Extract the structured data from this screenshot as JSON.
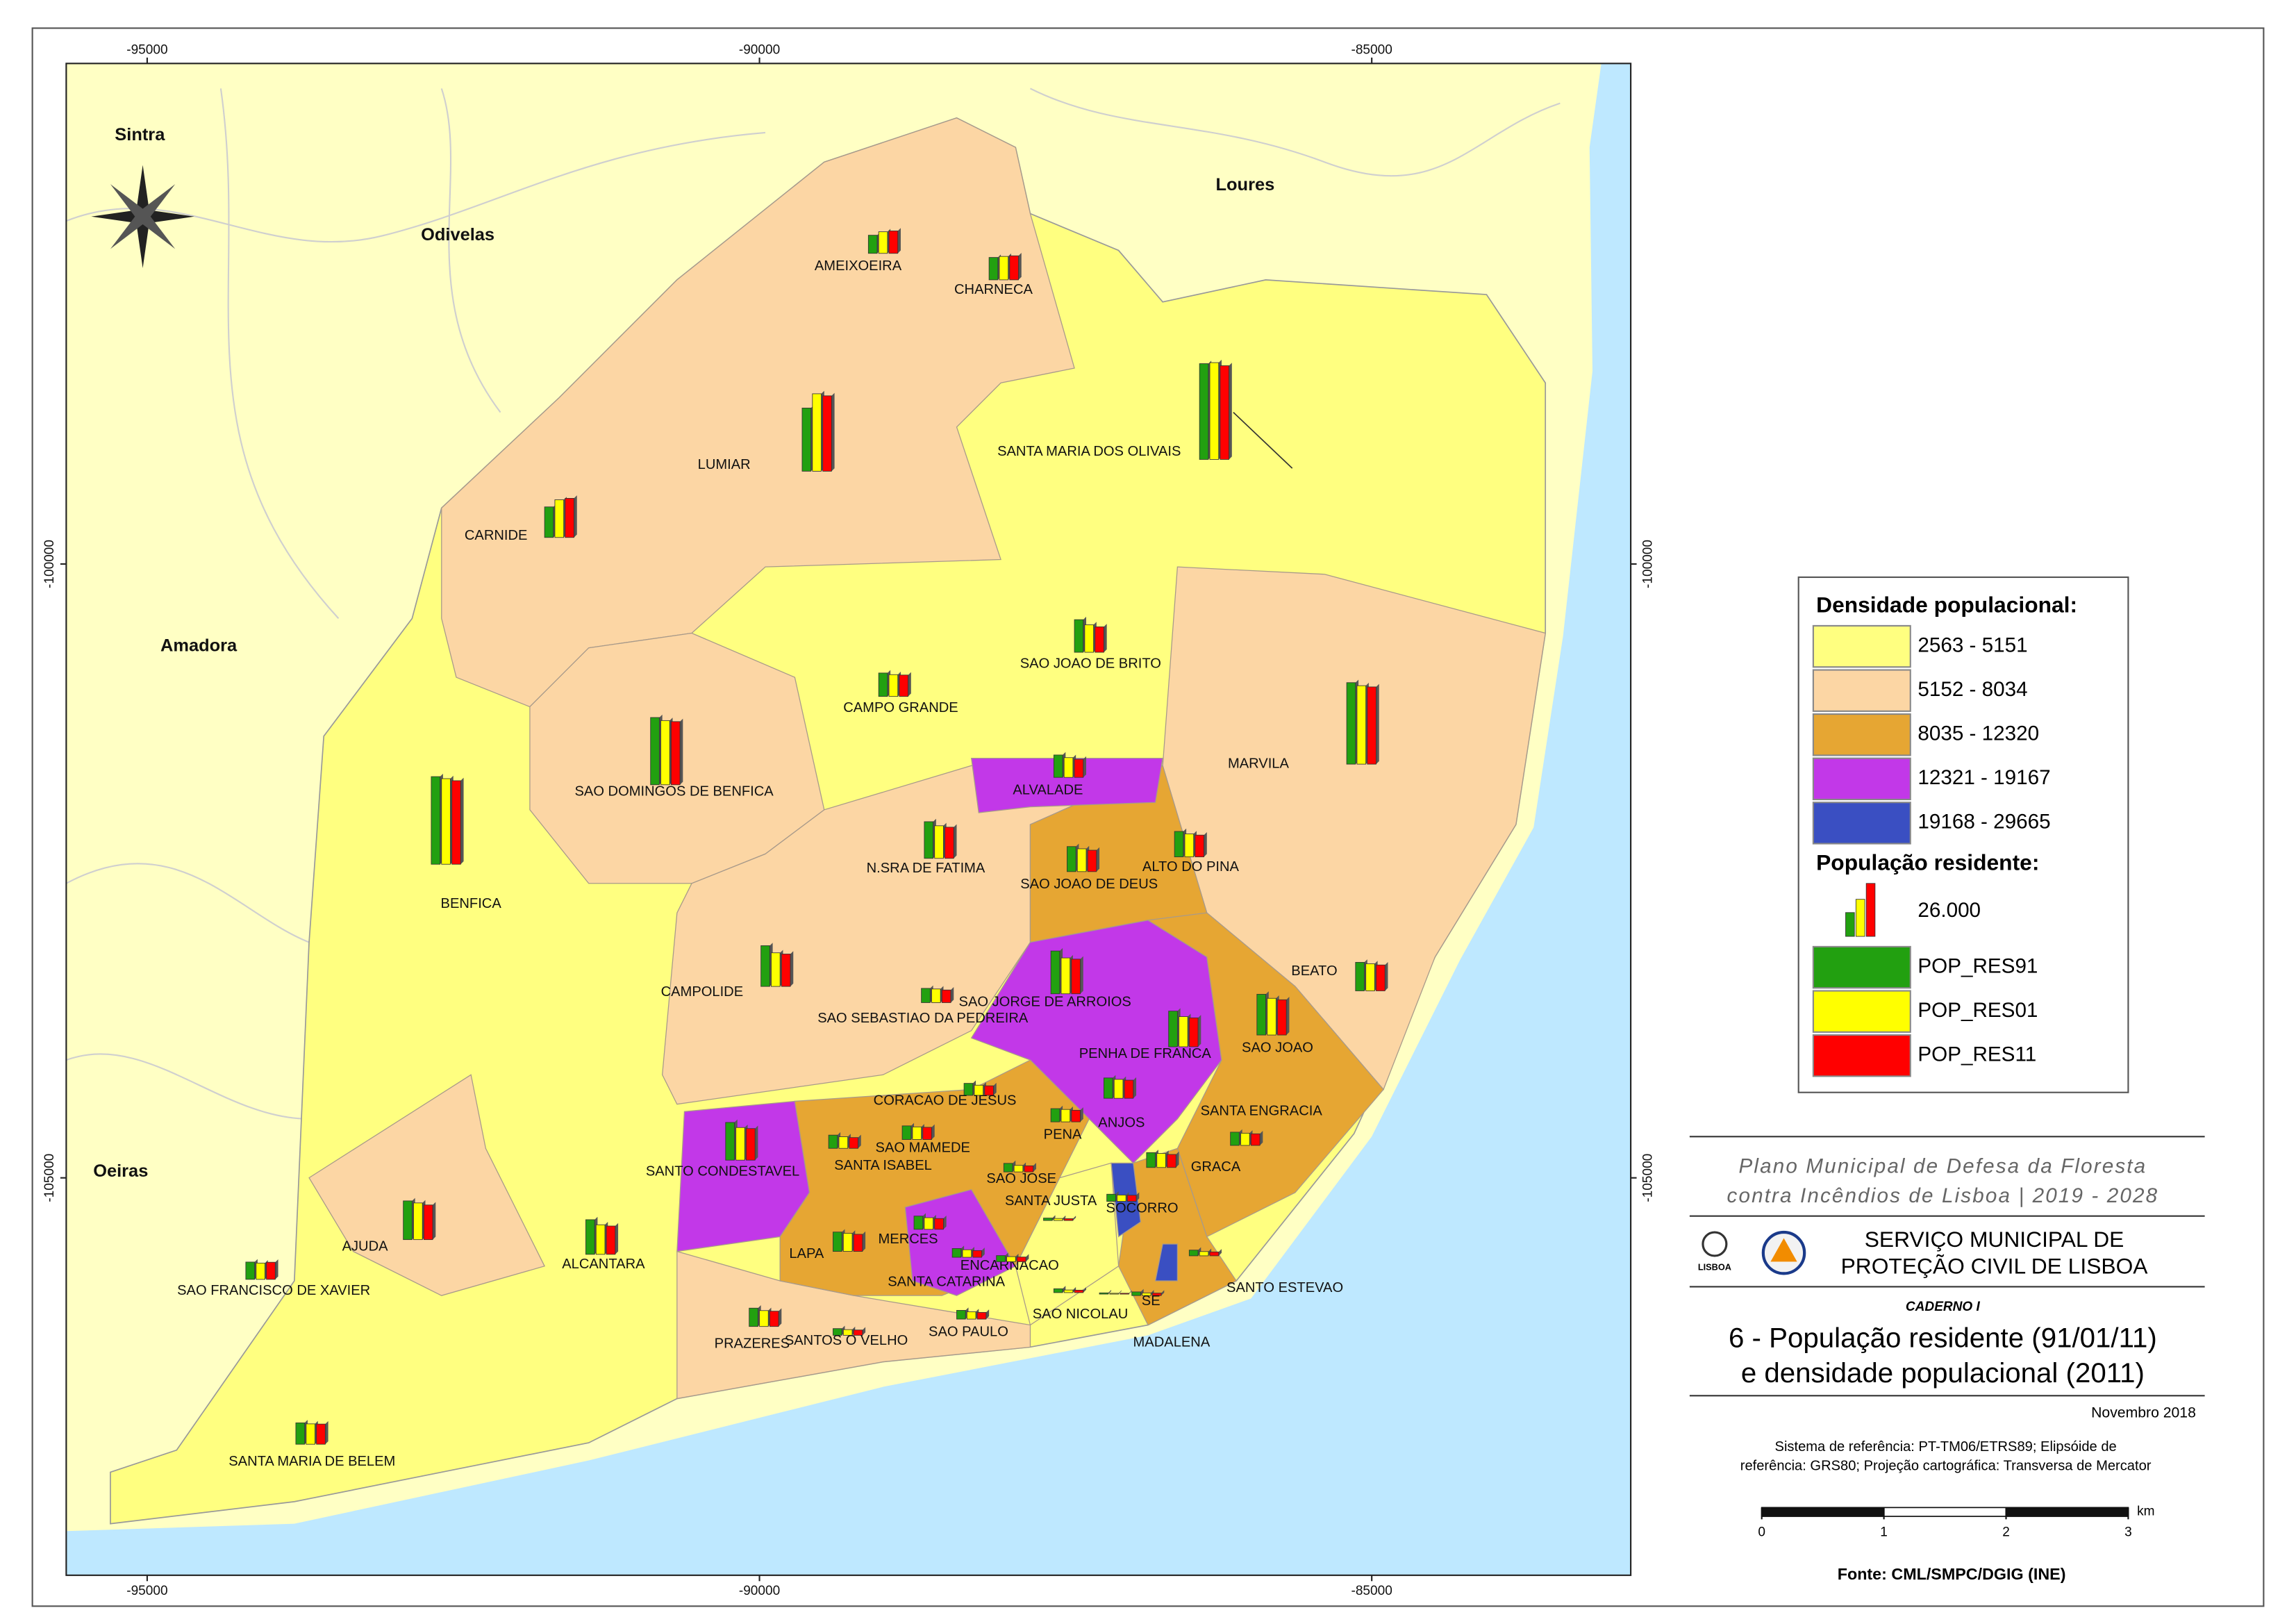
{
  "map": {
    "xticks": [
      -95000,
      -90000,
      -85000
    ],
    "yticks": [
      -100000,
      -105000
    ],
    "xlim": [
      -95661,
      -82885
    ],
    "ylim": [
      -108237,
      -95923
    ],
    "municipalities": [
      "Sintra",
      "Odivelas",
      "Loures",
      "Amadora",
      "Oeiras"
    ],
    "parishes": [
      {
        "name": "AMEIXOEIRA",
        "population": [
          8900,
          10600,
          11000
        ]
      },
      {
        "name": "CHARNECA",
        "population": [
          11000,
          11500,
          11800
        ]
      },
      {
        "name": "LUMIAR",
        "population": [
          31000,
          38000,
          37000
        ]
      },
      {
        "name": "SANTA MARIA DOS OLIVAIS",
        "population": [
          47000,
          47500,
          46000
        ]
      },
      {
        "name": "CARNIDE",
        "population": [
          15000,
          18500,
          19200
        ]
      },
      {
        "name": "CAMPO GRANDE",
        "population": [
          11500,
          10700,
          10500
        ]
      },
      {
        "name": "SAO JOAO DE BRITO",
        "population": [
          16000,
          13500,
          12500
        ]
      },
      {
        "name": "SAO DOMINGOS DE BENFICA",
        "population": [
          33000,
          31500,
          31000
        ]
      },
      {
        "name": "MARVILA",
        "population": [
          40000,
          38500,
          37900
        ]
      },
      {
        "name": "BENFICA",
        "population": [
          43000,
          42000,
          41000
        ]
      },
      {
        "name": "ALVALADE",
        "population": [
          11000,
          9700,
          8900
        ]
      },
      {
        "name": "N.SRA DE FATIMA",
        "population": [
          18000,
          16000,
          15300
        ]
      },
      {
        "name": "SAO JOAO DE DEUS",
        "population": [
          12300,
          11200,
          10500
        ]
      },
      {
        "name": "ALTO DO PINA",
        "population": [
          12500,
          11300,
          10700
        ]
      },
      {
        "name": "CAMPOLIDE",
        "population": [
          20000,
          16500,
          15900
        ]
      },
      {
        "name": "SAO SEBASTIAO DA PEDREIRA",
        "population": [
          7000,
          6700,
          6200
        ]
      },
      {
        "name": "SAO JORGE DE ARROIOS",
        "population": [
          21000,
          17600,
          17000
        ]
      },
      {
        "name": "BEATO",
        "population": [
          14000,
          13300,
          12700
        ]
      },
      {
        "name": "SAO JOAO",
        "population": [
          20000,
          18000,
          17300
        ]
      },
      {
        "name": "PENHA DE FRANCA",
        "population": [
          17500,
          14800,
          14200
        ]
      },
      {
        "name": "CORACAO DE JESUS",
        "population": [
          5900,
          5000,
          4700
        ]
      },
      {
        "name": "SANTA ENGRACIA",
        "population": [
          6500,
          6000,
          5700
        ]
      },
      {
        "name": "PENA",
        "population": [
          6500,
          6100,
          5700
        ]
      },
      {
        "name": "ANJOS",
        "population": [
          10000,
          9300,
          8900
        ]
      },
      {
        "name": "SANTO CONDESTAVEL",
        "population": [
          18500,
          16000,
          15500
        ]
      },
      {
        "name": "SAO MAMEDE",
        "population": [
          6500,
          5700,
          5300
        ]
      },
      {
        "name": "SANTA ISABEL",
        "population": [
          6700,
          6200,
          6000
        ]
      },
      {
        "name": "SAO JOSE",
        "population": [
          4200,
          3200,
          3000
        ]
      },
      {
        "name": "GRACA",
        "population": [
          7300,
          6900,
          6400
        ]
      },
      {
        "name": "SANTA JUSTA",
        "population": [
          1200,
          1000,
          900
        ]
      },
      {
        "name": "SOCORRO",
        "population": [
          3500,
          3100,
          3000
        ]
      },
      {
        "name": "LAPA",
        "population": [
          9500,
          8900,
          8400
        ]
      },
      {
        "name": "MERCES",
        "population": [
          6500,
          5700,
          5300
        ]
      },
      {
        "name": "ENCARNACAO",
        "population": [
          4300,
          3700,
          3300
        ]
      },
      {
        "name": "SANTA CATARINA",
        "population": [
          3000,
          2500,
          2300
        ]
      },
      {
        "name": "SAO NICOLAU",
        "population": [
          1900,
          1300,
          1200
        ]
      },
      {
        "name": "SE",
        "population": [
          1800,
          1300,
          1200
        ]
      },
      {
        "name": "SANTO ESTEVAO",
        "population": [
          2800,
          2100,
          1900
        ]
      },
      {
        "name": "MADALENA",
        "population": [
          600,
          400,
          400
        ]
      },
      {
        "name": "PRAZERES",
        "population": [
          9000,
          7800,
          7500
        ]
      },
      {
        "name": "SANTOS O VELHO",
        "population": [
          3300,
          2800,
          2600
        ]
      },
      {
        "name": "SAO PAULO",
        "population": [
          4300,
          3600,
          3300
        ]
      },
      {
        "name": "AJUDA",
        "population": [
          19000,
          18000,
          17000
        ]
      },
      {
        "name": "ALCANTARA",
        "population": [
          17000,
          14500,
          13900
        ]
      },
      {
        "name": "SAO FRANCISCO DE XAVIER",
        "population": [
          8500,
          8000,
          8400
        ]
      },
      {
        "name": "SANTA MARIA DE BELEM",
        "population": [
          10500,
          10000,
          9900
        ]
      }
    ]
  },
  "legend": {
    "density_title": "Densidade populacional:",
    "density_classes": [
      {
        "label": "2563 - 5151",
        "color": "#ffff80"
      },
      {
        "label": "5152 - 8034",
        "color": "#fcd6a4"
      },
      {
        "label": "8035 - 12320",
        "color": "#e6a633"
      },
      {
        "label": "12321 - 19167",
        "color": "#c238e8"
      },
      {
        "label": "19168 - 29665",
        "color": "#3a4fc2"
      }
    ],
    "population_title": "População residente:",
    "reference": {
      "value": 26000,
      "label": "26.000"
    },
    "series": [
      {
        "name": "POP_RES91",
        "color": "#22a010"
      },
      {
        "name": "POP_RES01",
        "color": "#ffff00"
      },
      {
        "name": "POP_RES11",
        "color": "#ff0000"
      }
    ]
  },
  "title_block": {
    "plan": [
      "Plano Municipal de Defesa da Floresta",
      "contra Incêndios de Lisboa | 2019 - 2028"
    ],
    "logo_text": "LISBOA",
    "service": [
      "SERVIÇO MUNICIPAL DE",
      "PROTEÇÃO CIVIL DE LISBOA"
    ],
    "notebook": "CADERNO I",
    "title": [
      "6 - População residente (91/01/11)",
      "e densidade populacional (2011)"
    ],
    "date": "Novembro 2018",
    "reference_system": [
      "Sistema de referência: PT-TM06/ETRS89; Elipsóide de",
      "referência: GRS80;  Projeção cartográfica: Transversa de Mercator"
    ],
    "scale_unit": "km",
    "scale_ticks": [
      0,
      1,
      2,
      3
    ],
    "source": "Fonte: CML/SMPC/DGIG (INE)"
  }
}
